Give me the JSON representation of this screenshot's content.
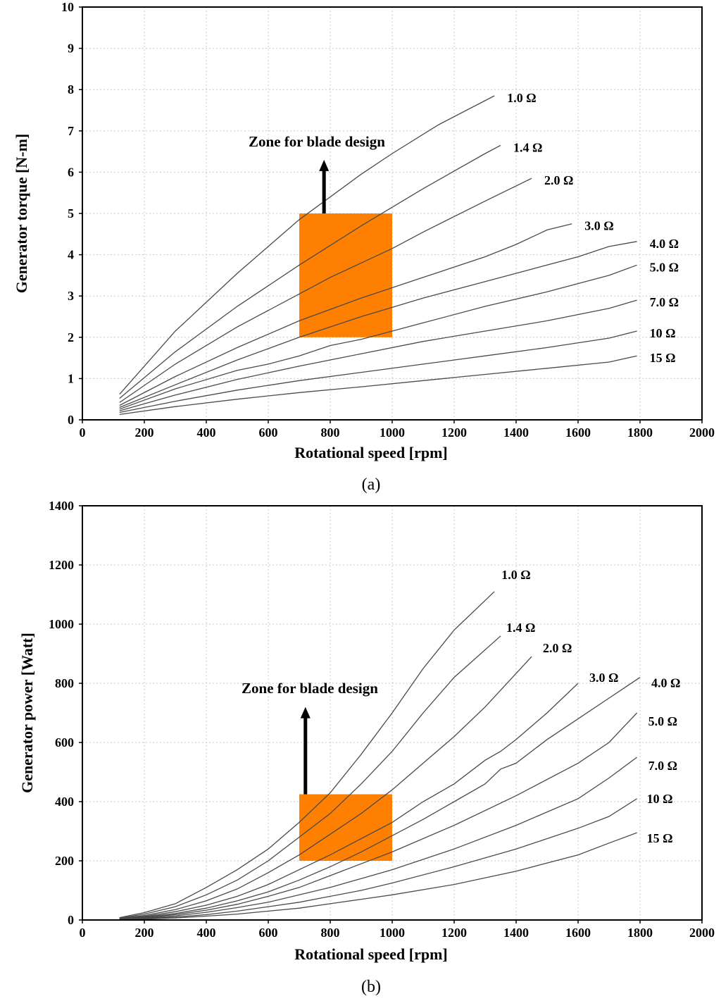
{
  "chart_data": [
    {
      "type": "line",
      "panel_label": "a",
      "xlabel": "Rotational speed [rpm]",
      "ylabel": "Generator torque [N-m]",
      "xlim": [
        0,
        2000
      ],
      "ylim": [
        0,
        10
      ],
      "xticks": [
        "0",
        "200",
        "400",
        "600",
        "800",
        "1000",
        "1200",
        "1400",
        "1600",
        "1800",
        "2000"
      ],
      "yticks": [
        "0",
        "1",
        "2",
        "3",
        "4",
        "5",
        "6",
        "7",
        "8",
        "9",
        "10"
      ],
      "grid": true,
      "series": [
        {
          "name": "1.0 Ω",
          "x": [
            120,
            300,
            500,
            700,
            900,
            1000,
            1150,
            1330
          ],
          "y": [
            0.62,
            2.15,
            3.55,
            4.85,
            5.95,
            6.45,
            7.15,
            7.85
          ]
        },
        {
          "name": "1.4 Ω",
          "x": [
            120,
            300,
            500,
            700,
            900,
            1100,
            1300,
            1350
          ],
          "y": [
            0.52,
            1.65,
            2.75,
            3.75,
            4.7,
            5.6,
            6.45,
            6.65
          ]
        },
        {
          "name": "2.0 Ω",
          "x": [
            120,
            300,
            500,
            700,
            800,
            900,
            1000,
            1100,
            1300,
            1450
          ],
          "y": [
            0.42,
            1.35,
            2.25,
            3.05,
            3.45,
            3.8,
            4.15,
            4.55,
            5.3,
            5.85
          ]
        },
        {
          "name": "3.0 Ω",
          "x": [
            120,
            300,
            500,
            700,
            900,
            1100,
            1300,
            1400,
            1500,
            1580
          ],
          "y": [
            0.35,
            1.05,
            1.75,
            2.4,
            2.95,
            3.45,
            3.95,
            4.25,
            4.6,
            4.75
          ]
        },
        {
          "name": "4.0 Ω",
          "x": [
            120,
            300,
            500,
            700,
            900,
            1100,
            1300,
            1450,
            1600,
            1700,
            1790
          ],
          "y": [
            0.3,
            0.85,
            1.45,
            2.0,
            2.5,
            2.95,
            3.35,
            3.65,
            3.95,
            4.2,
            4.32
          ]
        },
        {
          "name": "5.0 Ω",
          "x": [
            120,
            300,
            500,
            600,
            700,
            800,
            900,
            1100,
            1300,
            1500,
            1700,
            1790
          ],
          "y": [
            0.26,
            0.75,
            1.2,
            1.35,
            1.55,
            1.8,
            1.95,
            2.35,
            2.75,
            3.1,
            3.5,
            3.75
          ]
        },
        {
          "name": "7.0 Ω",
          "x": [
            120,
            300,
            500,
            700,
            900,
            1100,
            1300,
            1500,
            1700,
            1790
          ],
          "y": [
            0.22,
            0.6,
            0.98,
            1.3,
            1.6,
            1.9,
            2.15,
            2.4,
            2.7,
            2.9
          ]
        },
        {
          "name": "10 Ω",
          "x": [
            120,
            300,
            500,
            700,
            900,
            1100,
            1300,
            1500,
            1700,
            1790
          ],
          "y": [
            0.18,
            0.45,
            0.72,
            0.95,
            1.15,
            1.35,
            1.55,
            1.75,
            1.98,
            2.15
          ]
        },
        {
          "name": "15 Ω",
          "x": [
            120,
            300,
            500,
            700,
            900,
            1100,
            1300,
            1500,
            1700,
            1790
          ],
          "y": [
            0.13,
            0.32,
            0.5,
            0.66,
            0.8,
            0.95,
            1.1,
            1.25,
            1.4,
            1.55
          ]
        }
      ],
      "zone": {
        "x": [
          700,
          1000
        ],
        "y": [
          2,
          5
        ],
        "color": "#FF8000"
      },
      "arrow": {
        "x": 780,
        "y_from": 5,
        "y_to": 6.3
      },
      "annotation": "Zone for blade design"
    },
    {
      "type": "line",
      "panel_label": "b",
      "xlabel": "Rotational speed [rpm]",
      "ylabel": "Generator power [Watt]",
      "xlim": [
        0,
        2000
      ],
      "ylim": [
        0,
        1400
      ],
      "xticks": [
        "0",
        "200",
        "400",
        "600",
        "800",
        "1000",
        "1200",
        "1400",
        "1600",
        "1800",
        "2000"
      ],
      "yticks": [
        "0",
        "200",
        "400",
        "600",
        "800",
        "1000",
        "1200",
        "1400"
      ],
      "grid": true,
      "series": [
        {
          "name": "1.0 Ω",
          "x": [
            120,
            200,
            300,
            400,
            500,
            600,
            700,
            800,
            900,
            1000,
            1100,
            1200,
            1330
          ],
          "y": [
            8,
            25,
            55,
            110,
            170,
            240,
            330,
            430,
            560,
            700,
            850,
            980,
            1110
          ]
        },
        {
          "name": "1.4 Ω",
          "x": [
            120,
            200,
            300,
            400,
            500,
            600,
            700,
            800,
            900,
            1000,
            1100,
            1200,
            1350
          ],
          "y": [
            6,
            20,
            45,
            85,
            135,
            200,
            280,
            360,
            460,
            570,
            700,
            820,
            960
          ]
        },
        {
          "name": "2.0 Ω",
          "x": [
            120,
            200,
            300,
            400,
            500,
            600,
            700,
            800,
            900,
            1000,
            1100,
            1200,
            1300,
            1450
          ],
          "y": [
            5,
            15,
            35,
            65,
            105,
            160,
            220,
            290,
            360,
            440,
            530,
            620,
            720,
            890
          ]
        },
        {
          "name": "3.0 Ω",
          "x": [
            120,
            200,
            300,
            400,
            500,
            600,
            700,
            800,
            900,
            1000,
            1100,
            1200,
            1300,
            1350,
            1400,
            1500,
            1600
          ],
          "y": [
            4,
            12,
            28,
            50,
            80,
            120,
            170,
            220,
            275,
            330,
            400,
            460,
            540,
            570,
            610,
            700,
            800
          ]
        },
        {
          "name": "4.0 Ω",
          "x": [
            120,
            200,
            300,
            400,
            500,
            600,
            700,
            800,
            900,
            1000,
            1100,
            1200,
            1300,
            1350,
            1400,
            1500,
            1600,
            1700,
            1800
          ],
          "y": [
            3,
            10,
            22,
            40,
            65,
            95,
            135,
            180,
            230,
            285,
            340,
            400,
            460,
            510,
            530,
            610,
            680,
            750,
            820
          ]
        },
        {
          "name": "5.0 Ω",
          "x": [
            120,
            200,
            300,
            400,
            500,
            600,
            700,
            800,
            900,
            1000,
            1200,
            1400,
            1600,
            1700,
            1790
          ],
          "y": [
            3,
            8,
            18,
            33,
            53,
            80,
            110,
            150,
            190,
            230,
            320,
            420,
            530,
            600,
            700
          ]
        },
        {
          "name": "7.0 Ω",
          "x": [
            120,
            200,
            300,
            400,
            500,
            600,
            700,
            800,
            900,
            1000,
            1200,
            1400,
            1600,
            1700,
            1790
          ],
          "y": [
            2,
            6,
            14,
            26,
            42,
            60,
            85,
            110,
            140,
            170,
            240,
            320,
            410,
            480,
            550
          ]
        },
        {
          "name": "10 Ω",
          "x": [
            120,
            200,
            300,
            400,
            500,
            600,
            700,
            800,
            900,
            1000,
            1200,
            1400,
            1600,
            1700,
            1790
          ],
          "y": [
            2,
            5,
            10,
            18,
            30,
            45,
            60,
            80,
            100,
            125,
            180,
            240,
            310,
            350,
            410
          ]
        },
        {
          "name": "15 Ω",
          "x": [
            120,
            200,
            300,
            400,
            500,
            600,
            700,
            800,
            900,
            1000,
            1200,
            1400,
            1600,
            1700,
            1790
          ],
          "y": [
            1,
            3,
            7,
            13,
            20,
            30,
            40,
            55,
            70,
            85,
            120,
            165,
            220,
            260,
            295
          ]
        }
      ],
      "zone": {
        "x": [
          700,
          1000
        ],
        "y": [
          200,
          425
        ],
        "color": "#FF8000"
      },
      "arrow": {
        "x": 720,
        "y_from": 425,
        "y_to": 720
      },
      "annotation": "Zone for blade design"
    }
  ],
  "captions": {
    "a": "(a)",
    "b": "(b)"
  }
}
